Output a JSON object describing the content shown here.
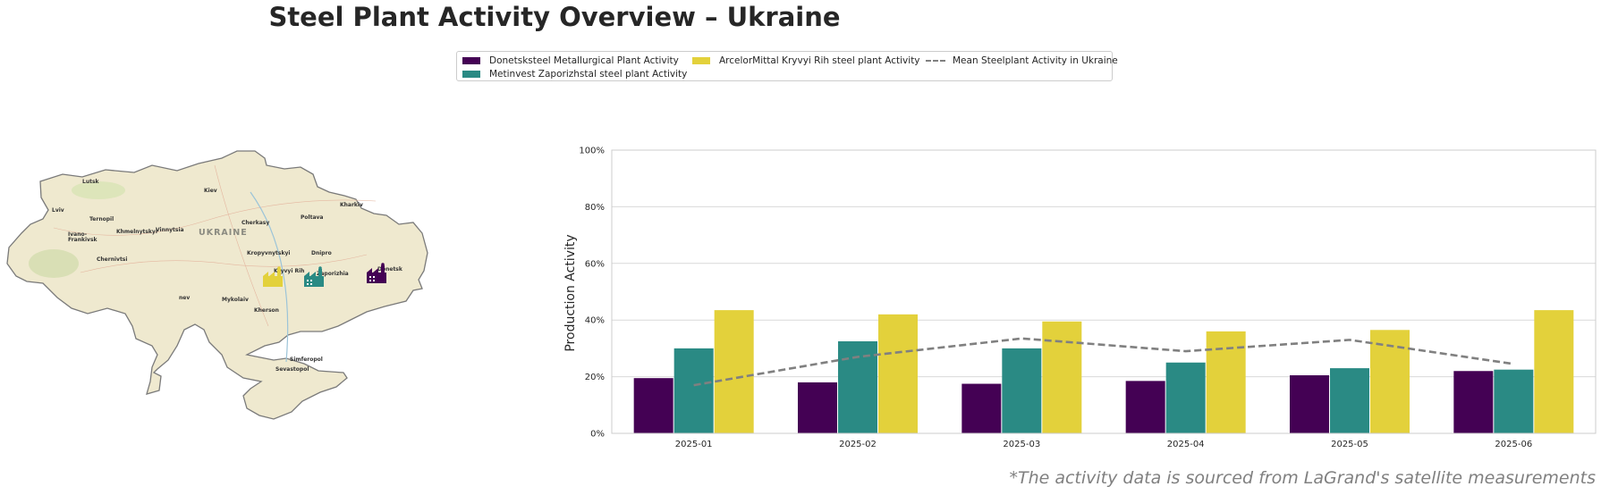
{
  "title": "Steel Plant Activity Overview – Ukraine",
  "footnote": "*The activity data is sourced from LaGrand's satellite measurements",
  "colors": {
    "donetsk": "#440154",
    "zaporizhstal": "#2a8a84",
    "kryvyi": "#e3d13b",
    "mean": "#808080"
  },
  "map": {
    "country_label": "UKRAINE",
    "cities": [
      "Lutsk",
      "Kiev",
      "Kharkiv",
      "Lviv",
      "Ternopil",
      "Ivano-",
      "Frankivsk",
      "Khmelnytskyi",
      "Vinnytsia",
      "Cherkasy",
      "Poltava",
      "Chernivtsi",
      "Kropyvnytskyi",
      "Dnipro",
      "Kryvyi Rih",
      "Zaporizhia",
      "Donetsk",
      "nev",
      "Mykolaiv",
      "Kherson",
      "Simferopol",
      "Sevastopol"
    ],
    "plant_icons": [
      "factory-icon",
      "factory-icon",
      "factory-icon"
    ]
  },
  "chart_data": {
    "type": "bar",
    "categories": [
      "2025-01",
      "2025-02",
      "2025-03",
      "2025-04",
      "2025-05",
      "2025-06"
    ],
    "series": [
      {
        "name": "Donetsksteel Metallurgical Plant Activity",
        "values": [
          19.5,
          18,
          17.5,
          18.5,
          20.5,
          22
        ]
      },
      {
        "name": "Metinvest Zaporizhstal steel plant Activity",
        "values": [
          30,
          32.5,
          30,
          25,
          23,
          22.5
        ]
      },
      {
        "name": "ArcelorMittal Kryvyi Rih steel plant Activity",
        "values": [
          43.5,
          42,
          39.5,
          36,
          36.5,
          43.5
        ]
      }
    ],
    "line_series": {
      "name": "Mean Steelplant Activity in Ukraine",
      "values": [
        17,
        27,
        33.5,
        29,
        33,
        24.5
      ]
    },
    "ylabel": "Production Activity",
    "xlabel": "",
    "ylim": [
      0,
      100
    ],
    "yticks": [
      "0%",
      "20%",
      "40%",
      "60%",
      "80%",
      "100%"
    ],
    "grid": "horizontal",
    "legend_position": "top-center"
  }
}
